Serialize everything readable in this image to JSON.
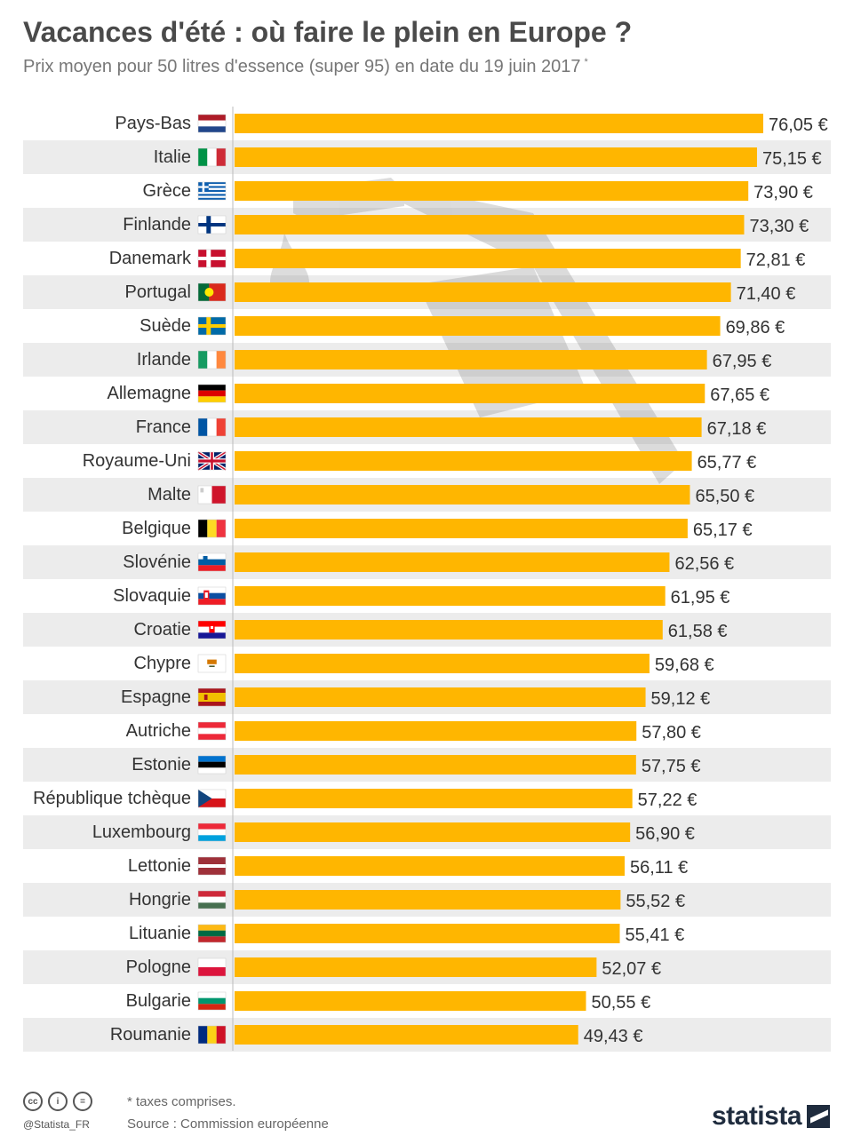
{
  "title": "Vacances d'été : où faire le plein en Europe ?",
  "subtitle": "Prix moyen pour 50 litres d'essence (super 95) en date du 19 juin 2017",
  "subtitle_mark": "*",
  "chart_data": {
    "type": "bar",
    "orientation": "horizontal",
    "unit": "€",
    "bar_color": "#ffb600",
    "stripe_color": "#ececec",
    "background_icon": "fuel-nozzle-icon",
    "categories": [
      "Pays-Bas",
      "Italie",
      "Grèce",
      "Finlande",
      "Danemark",
      "Portugal",
      "Suède",
      "Irlande",
      "Allemagne",
      "France",
      "Royaume-Uni",
      "Malte",
      "Belgique",
      "Slovénie",
      "Slovaquie",
      "Croatie",
      "Chypre",
      "Espagne",
      "Autriche",
      "Estonie",
      "République tchèque",
      "Luxembourg",
      "Lettonie",
      "Hongrie",
      "Lituanie",
      "Pologne",
      "Bulgarie",
      "Roumanie"
    ],
    "values": [
      76.05,
      75.15,
      73.9,
      73.3,
      72.81,
      71.4,
      69.86,
      67.95,
      67.65,
      67.18,
      65.77,
      65.5,
      65.17,
      62.56,
      61.95,
      61.58,
      59.68,
      59.12,
      57.8,
      57.75,
      57.22,
      56.9,
      56.11,
      55.52,
      55.41,
      52.07,
      50.55,
      49.43
    ],
    "value_labels": [
      "76,05 €",
      "75,15 €",
      "73,90 €",
      "73,30 €",
      "72,81 €",
      "71,40 €",
      "69,86 €",
      "67,95 €",
      "67,65 €",
      "67,18 €",
      "65,77 €",
      "65,50 €",
      "65,17 €",
      "62,56 €",
      "61,95 €",
      "61,58 €",
      "59,68 €",
      "59,12 €",
      "57,80 €",
      "57,75 €",
      "57,22 €",
      "56,90 €",
      "56,11 €",
      "55,52 €",
      "55,41 €",
      "52,07 €",
      "50,55 €",
      "49,43 €"
    ],
    "flags": [
      "flag-netherlands-icon",
      "flag-italy-icon",
      "flag-greece-icon",
      "flag-finland-icon",
      "flag-denmark-icon",
      "flag-portugal-icon",
      "flag-sweden-icon",
      "flag-ireland-icon",
      "flag-germany-icon",
      "flag-france-icon",
      "flag-united-kingdom-icon",
      "flag-malta-icon",
      "flag-belgium-icon",
      "flag-slovenia-icon",
      "flag-slovakia-icon",
      "flag-croatia-icon",
      "flag-cyprus-icon",
      "flag-spain-icon",
      "flag-austria-icon",
      "flag-estonia-icon",
      "flag-czech-republic-icon",
      "flag-luxembourg-icon",
      "flag-latvia-icon",
      "flag-hungary-icon",
      "flag-lithuania-icon",
      "flag-poland-icon",
      "flag-bulgaria-icon",
      "flag-romania-icon"
    ],
    "xlim": [
      0,
      76.05
    ],
    "grid": false,
    "legend": "none"
  },
  "footer": {
    "note": "* taxes comprises.",
    "source": "Source : Commission européenne",
    "handle": "@Statista_FR",
    "license_icons": [
      "cc-icon",
      "by-icon",
      "nd-icon"
    ],
    "brand": "statista"
  }
}
